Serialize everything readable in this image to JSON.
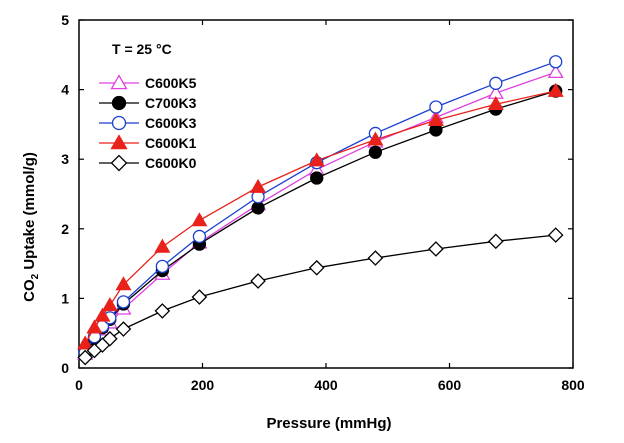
{
  "chart_data": {
    "type": "scatter",
    "title": "",
    "annotation": "T = 25 °C",
    "xlabel": "Pressure (mmHg)",
    "ylabel": {
      "prefix": "CO",
      "subscript": "2",
      "suffix": " Uptake (mmol/g)"
    },
    "xlim": [
      0,
      800
    ],
    "ylim": [
      0,
      5
    ],
    "xticks": [
      0,
      200,
      400,
      600,
      800
    ],
    "yticks": [
      0,
      1,
      2,
      3,
      4,
      5
    ],
    "grid": false,
    "legend_position": "upper-left",
    "series": [
      {
        "name": "C600K5",
        "color": "#e040e0",
        "marker": "triangle",
        "filled": false,
        "x": [
          10,
          25,
          38,
          50,
          72,
          135,
          195,
          290,
          385,
          480,
          578,
          675,
          772
        ],
        "y": [
          0.2,
          0.4,
          0.55,
          0.65,
          0.85,
          1.35,
          1.8,
          2.35,
          2.85,
          3.25,
          3.6,
          3.95,
          4.25
        ]
      },
      {
        "name": "C700K3",
        "color": "#000000",
        "marker": "circle",
        "filled": true,
        "x": [
          10,
          25,
          38,
          50,
          72,
          135,
          195,
          290,
          385,
          480,
          578,
          675,
          772
        ],
        "y": [
          0.2,
          0.42,
          0.58,
          0.7,
          0.92,
          1.4,
          1.78,
          2.3,
          2.73,
          3.1,
          3.42,
          3.72,
          3.98
        ]
      },
      {
        "name": "C600K3",
        "color": "#1a3fd0",
        "marker": "circle",
        "filled": false,
        "x": [
          10,
          25,
          38,
          50,
          72,
          135,
          195,
          290,
          385,
          480,
          578,
          675,
          772
        ],
        "y": [
          0.22,
          0.45,
          0.6,
          0.72,
          0.95,
          1.46,
          1.89,
          2.46,
          2.95,
          3.37,
          3.75,
          4.09,
          4.4
        ]
      },
      {
        "name": "C600K1",
        "color": "#e8211a",
        "marker": "triangle",
        "filled": true,
        "x": [
          10,
          25,
          38,
          50,
          72,
          135,
          195,
          290,
          385,
          480,
          578,
          675,
          772
        ],
        "y": [
          0.35,
          0.58,
          0.75,
          0.9,
          1.2,
          1.74,
          2.12,
          2.6,
          2.98,
          3.28,
          3.56,
          3.79,
          3.98
        ]
      },
      {
        "name": "C600K0",
        "color": "#000000",
        "marker": "diamond",
        "filled": false,
        "x": [
          10,
          25,
          38,
          50,
          72,
          135,
          195,
          290,
          385,
          480,
          578,
          675,
          772
        ],
        "y": [
          0.15,
          0.25,
          0.33,
          0.42,
          0.56,
          0.82,
          1.02,
          1.25,
          1.44,
          1.58,
          1.71,
          1.82,
          1.91
        ]
      }
    ]
  }
}
